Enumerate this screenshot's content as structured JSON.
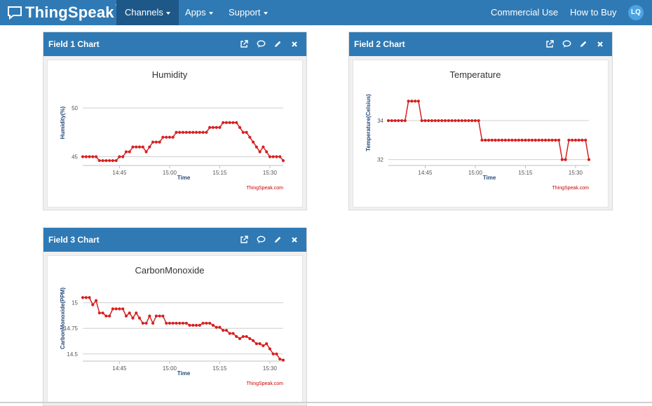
{
  "nav": {
    "brand": "ThingSpeak",
    "brand_tm": "™",
    "items": [
      {
        "label": "Channels",
        "active": true
      },
      {
        "label": "Apps"
      },
      {
        "label": "Support"
      }
    ],
    "right_items": [
      "Commercial Use",
      "How to Buy"
    ],
    "avatar_initials": "LQ"
  },
  "panels": [
    {
      "title": "Field 1 Chart"
    },
    {
      "title": "Field 2 Chart"
    },
    {
      "title": "Field 3 Chart"
    }
  ],
  "chart_data": [
    {
      "type": "line",
      "title": "Humidity",
      "xlabel": "Time",
      "ylabel": "Humidity(%)",
      "credit": "ThingSpeak.com",
      "color": "#d62020",
      "xlim": [
        "14:34",
        "15:34"
      ],
      "ylim": [
        44.1,
        52.3
      ],
      "yticks": [
        45,
        50
      ],
      "xticks": [
        "14:45",
        "15:00",
        "15:15",
        "15:30"
      ],
      "x": [
        "14:34",
        "14:35",
        "14:36",
        "14:37",
        "14:38",
        "14:39",
        "14:40",
        "14:41",
        "14:42",
        "14:43",
        "14:44",
        "14:45",
        "14:46",
        "14:47",
        "14:48",
        "14:49",
        "14:50",
        "14:51",
        "14:52",
        "14:53",
        "14:54",
        "14:55",
        "14:56",
        "14:57",
        "14:58",
        "14:59",
        "15:00",
        "15:01",
        "15:02",
        "15:03",
        "15:04",
        "15:05",
        "15:06",
        "15:07",
        "15:08",
        "15:09",
        "15:10",
        "15:11",
        "15:12",
        "15:13",
        "15:14",
        "15:15",
        "15:16",
        "15:17",
        "15:18",
        "15:19",
        "15:20",
        "15:21",
        "15:22",
        "15:23",
        "15:24",
        "15:25",
        "15:26",
        "15:27",
        "15:28",
        "15:29",
        "15:30",
        "15:31",
        "15:32",
        "15:33",
        "15:34"
      ],
      "y": [
        45,
        45,
        45,
        45,
        45,
        44.6,
        44.6,
        44.6,
        44.6,
        44.6,
        44.6,
        45,
        45,
        45.5,
        45.5,
        46,
        46,
        46,
        46,
        45.5,
        46,
        46.5,
        46.5,
        46.5,
        47,
        47,
        47,
        47,
        47.5,
        47.5,
        47.5,
        47.5,
        47.5,
        47.5,
        47.5,
        47.5,
        47.5,
        47.5,
        48,
        48,
        48,
        48,
        48.5,
        48.5,
        48.5,
        48.5,
        48.5,
        48,
        47.5,
        47.5,
        47,
        46.5,
        46,
        45.5,
        46,
        45.5,
        45,
        45,
        45,
        45,
        44.6
      ]
    },
    {
      "type": "line",
      "title": "Temperature",
      "xlabel": "Time",
      "ylabel": "Temperature(Celsius)",
      "credit": "ThingSpeak.com",
      "color": "#d62020",
      "xlim": [
        "14:34",
        "15:34"
      ],
      "ylim": [
        31.7,
        35.8
      ],
      "yticks": [
        32,
        34
      ],
      "xticks": [
        "14:45",
        "15:00",
        "15:15",
        "15:30"
      ],
      "x": [
        "14:34",
        "14:35",
        "14:36",
        "14:37",
        "14:38",
        "14:39",
        "14:40",
        "14:41",
        "14:42",
        "14:43",
        "14:44",
        "14:45",
        "14:46",
        "14:47",
        "14:48",
        "14:49",
        "14:50",
        "14:51",
        "14:52",
        "14:53",
        "14:54",
        "14:55",
        "14:56",
        "14:57",
        "14:58",
        "14:59",
        "15:00",
        "15:01",
        "15:02",
        "15:03",
        "15:04",
        "15:05",
        "15:06",
        "15:07",
        "15:08",
        "15:09",
        "15:10",
        "15:11",
        "15:12",
        "15:13",
        "15:14",
        "15:15",
        "15:16",
        "15:17",
        "15:18",
        "15:19",
        "15:20",
        "15:21",
        "15:22",
        "15:23",
        "15:24",
        "15:25",
        "15:26",
        "15:27",
        "15:28",
        "15:29",
        "15:30",
        "15:31",
        "15:32",
        "15:33",
        "15:34"
      ],
      "y": [
        34,
        34,
        34,
        34,
        34,
        34,
        35,
        35,
        35,
        35,
        34,
        34,
        34,
        34,
        34,
        34,
        34,
        34,
        34,
        34,
        34,
        34,
        34,
        34,
        34,
        34,
        34,
        34,
        33,
        33,
        33,
        33,
        33,
        33,
        33,
        33,
        33,
        33,
        33,
        33,
        33,
        33,
        33,
        33,
        33,
        33,
        33,
        33,
        33,
        33,
        33,
        33,
        32,
        32,
        33,
        33,
        33,
        33,
        33,
        33,
        32
      ]
    },
    {
      "type": "line",
      "title": "CarbonMonoxide",
      "xlabel": "Time",
      "ylabel": "CarbonMonoxide(PPM)",
      "credit": "ThingSpeak.com",
      "color": "#d62020",
      "xlim": [
        "14:34",
        "15:34"
      ],
      "ylim": [
        14.43,
        15.21
      ],
      "yticks": [
        14.5,
        14.75,
        15
      ],
      "xticks": [
        "14:45",
        "15:00",
        "15:15",
        "15:30"
      ],
      "x": [
        "14:34",
        "14:35",
        "14:36",
        "14:37",
        "14:38",
        "14:39",
        "14:40",
        "14:41",
        "14:42",
        "14:43",
        "14:44",
        "14:45",
        "14:46",
        "14:47",
        "14:48",
        "14:49",
        "14:50",
        "14:51",
        "14:52",
        "14:53",
        "14:54",
        "14:55",
        "14:56",
        "14:57",
        "14:58",
        "14:59",
        "15:00",
        "15:01",
        "15:02",
        "15:03",
        "15:04",
        "15:05",
        "15:06",
        "15:07",
        "15:08",
        "15:09",
        "15:10",
        "15:11",
        "15:12",
        "15:13",
        "15:14",
        "15:15",
        "15:16",
        "15:17",
        "15:18",
        "15:19",
        "15:20",
        "15:21",
        "15:22",
        "15:23",
        "15:24",
        "15:25",
        "15:26",
        "15:27",
        "15:28",
        "15:29",
        "15:30",
        "15:31",
        "15:32",
        "15:33",
        "15:34"
      ],
      "y": [
        15.05,
        15.05,
        15.05,
        14.98,
        15.02,
        14.9,
        14.9,
        14.87,
        14.87,
        14.94,
        14.94,
        14.94,
        14.94,
        14.87,
        14.9,
        14.85,
        14.9,
        14.85,
        14.8,
        14.8,
        14.87,
        14.8,
        14.87,
        14.87,
        14.87,
        14.8,
        14.8,
        14.8,
        14.8,
        14.8,
        14.8,
        14.8,
        14.78,
        14.78,
        14.78,
        14.78,
        14.8,
        14.8,
        14.8,
        14.78,
        14.76,
        14.76,
        14.73,
        14.73,
        14.7,
        14.7,
        14.67,
        14.65,
        14.67,
        14.67,
        14.65,
        14.63,
        14.6,
        14.6,
        14.58,
        14.6,
        14.55,
        14.5,
        14.5,
        14.45,
        14.44
      ]
    }
  ]
}
